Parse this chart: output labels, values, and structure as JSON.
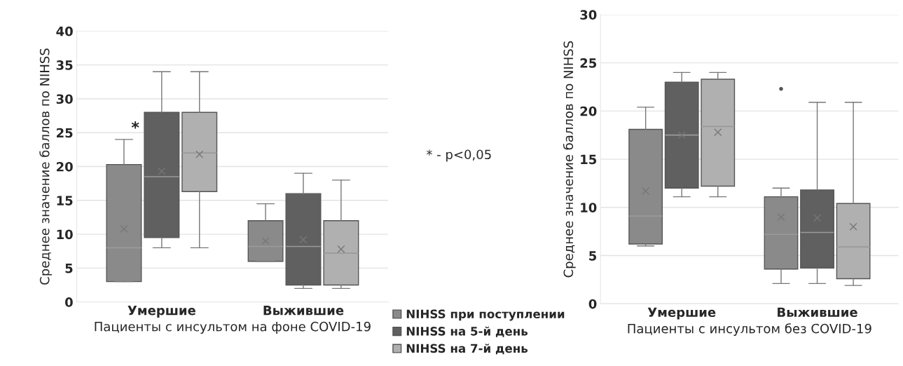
{
  "chart_data": [
    {
      "type": "box",
      "xlabel": "Пациенты с инсультом на фоне COVID-19",
      "ylabel": "Среднее значение баллов по NIHSS",
      "categories": [
        "Умершие",
        "Выжившие"
      ],
      "ylim": [
        0,
        40
      ],
      "yticks": [
        0,
        5,
        10,
        15,
        20,
        25,
        30,
        35,
        40
      ],
      "grid": "y",
      "legend": "bottom right",
      "marker": "cross",
      "series": [
        {
          "name": "NIHSS при поступлении",
          "color": "#8a8a8a",
          "boxes": [
            {
              "low": 3,
              "q1": 3,
              "median": 8,
              "q3": 20.3,
              "high": 24,
              "mean": 10.8
            },
            {
              "low": 6,
              "q1": 6,
              "median": 8.2,
              "q3": 12,
              "high": 14.5,
              "mean": 9
            }
          ]
        },
        {
          "name": "NIHSS на 5-й день",
          "color": "#606060",
          "boxes": [
            {
              "low": 8,
              "q1": 9.5,
              "median": 18.5,
              "q3": 28,
              "high": 34,
              "mean": 19.3
            },
            {
              "low": 2,
              "q1": 2.5,
              "median": 8.2,
              "q3": 16,
              "high": 19,
              "mean": 9.2
            }
          ]
        },
        {
          "name": "NIHSS на 7-й день",
          "color": "#b0b0b0",
          "boxes": [
            {
              "low": 8,
              "q1": 16.3,
              "median": 22,
              "q3": 28,
              "high": 34,
              "mean": 21.8
            },
            {
              "low": 2,
              "q1": 2.5,
              "median": 7.2,
              "q3": 12,
              "high": 18,
              "mean": 7.8
            }
          ]
        }
      ],
      "annotations": [
        "*",
        "* - p<0,05"
      ]
    },
    {
      "type": "box",
      "xlabel": "Пациенты с инсультом без COVID-19",
      "ylabel": "Среднее значение баллов по NIHSS",
      "categories": [
        "Умершие",
        "Выжившие"
      ],
      "ylim": [
        0,
        30
      ],
      "yticks": [
        0,
        5,
        10,
        15,
        20,
        25,
        30
      ],
      "grid": "y",
      "marker": "cross",
      "series": [
        {
          "color": "#8a8a8a",
          "boxes": [
            {
              "low": 6,
              "q1": 6.2,
              "median": 9.1,
              "q3": 18.1,
              "high": 20.4,
              "mean": 11.7
            },
            {
              "low": 2.1,
              "q1": 3.6,
              "median": 7.2,
              "q3": 11.1,
              "high": 12,
              "mean": 9,
              "outliers": [
                22.3
              ]
            }
          ]
        },
        {
          "color": "#606060",
          "boxes": [
            {
              "low": 11.1,
              "q1": 12,
              "median": 17.5,
              "q3": 23,
              "high": 24,
              "mean": 17.5
            },
            {
              "low": 2.1,
              "q1": 3.7,
              "median": 7.4,
              "q3": 11.8,
              "high": 20.9,
              "mean": 8.9
            }
          ]
        },
        {
          "color": "#b0b0b0",
          "boxes": [
            {
              "low": 11.1,
              "q1": 12.2,
              "median": 18.4,
              "q3": 23.3,
              "high": 24,
              "mean": 17.8
            },
            {
              "low": 1.9,
              "q1": 2.6,
              "median": 5.9,
              "q3": 10.4,
              "high": 20.9,
              "mean": 8
            }
          ]
        }
      ]
    }
  ]
}
